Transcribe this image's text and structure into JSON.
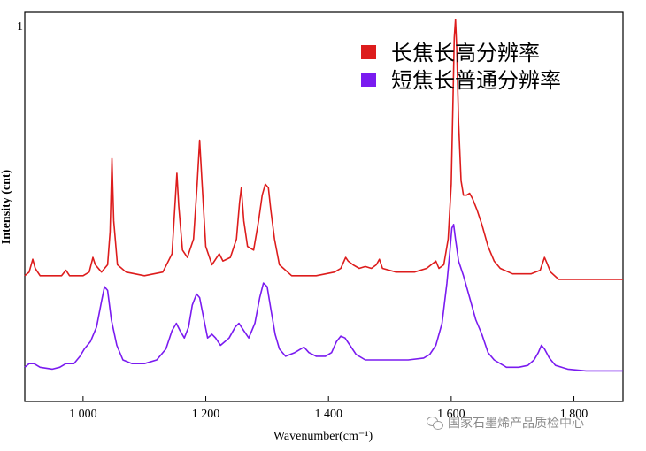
{
  "chart_data": {
    "type": "line",
    "xlabel": "Wavenumber(cm⁻¹)",
    "ylabel": "Intensity (cnt)",
    "panel_letter": "1",
    "xlim": [
      905,
      1880
    ],
    "ylim": [
      0,
      1
    ],
    "x_ticks": [
      1000,
      1200,
      1400,
      1600,
      1800
    ],
    "x_tick_labels": [
      "1 000",
      "1 200",
      "1 400",
      "1 600",
      "1 800"
    ],
    "legend_position": "top-right",
    "series": [
      {
        "name": "长焦长高分辨率",
        "color": "#dd1c1c",
        "points": [
          [
            905,
            0.3
          ],
          [
            912,
            0.31
          ],
          [
            918,
            0.345
          ],
          [
            922,
            0.32
          ],
          [
            930,
            0.3
          ],
          [
            950,
            0.3
          ],
          [
            965,
            0.3
          ],
          [
            972,
            0.315
          ],
          [
            978,
            0.3
          ],
          [
            1000,
            0.3
          ],
          [
            1010,
            0.31
          ],
          [
            1016,
            0.35
          ],
          [
            1020,
            0.33
          ],
          [
            1030,
            0.31
          ],
          [
            1040,
            0.33
          ],
          [
            1044,
            0.42
          ],
          [
            1047,
            0.62
          ],
          [
            1050,
            0.45
          ],
          [
            1056,
            0.33
          ],
          [
            1070,
            0.31
          ],
          [
            1100,
            0.3
          ],
          [
            1130,
            0.31
          ],
          [
            1145,
            0.36
          ],
          [
            1150,
            0.5
          ],
          [
            1153,
            0.58
          ],
          [
            1156,
            0.49
          ],
          [
            1162,
            0.37
          ],
          [
            1170,
            0.35
          ],
          [
            1180,
            0.4
          ],
          [
            1186,
            0.55
          ],
          [
            1190,
            0.67
          ],
          [
            1194,
            0.55
          ],
          [
            1200,
            0.38
          ],
          [
            1210,
            0.33
          ],
          [
            1218,
            0.35
          ],
          [
            1222,
            0.36
          ],
          [
            1228,
            0.34
          ],
          [
            1240,
            0.35
          ],
          [
            1250,
            0.4
          ],
          [
            1255,
            0.5
          ],
          [
            1258,
            0.54
          ],
          [
            1262,
            0.45
          ],
          [
            1268,
            0.38
          ],
          [
            1278,
            0.37
          ],
          [
            1286,
            0.45
          ],
          [
            1292,
            0.52
          ],
          [
            1297,
            0.55
          ],
          [
            1302,
            0.54
          ],
          [
            1306,
            0.48
          ],
          [
            1312,
            0.4
          ],
          [
            1320,
            0.33
          ],
          [
            1340,
            0.3
          ],
          [
            1380,
            0.3
          ],
          [
            1410,
            0.31
          ],
          [
            1420,
            0.32
          ],
          [
            1428,
            0.35
          ],
          [
            1432,
            0.34
          ],
          [
            1440,
            0.33
          ],
          [
            1450,
            0.32
          ],
          [
            1460,
            0.325
          ],
          [
            1470,
            0.32
          ],
          [
            1478,
            0.33
          ],
          [
            1483,
            0.345
          ],
          [
            1488,
            0.32
          ],
          [
            1510,
            0.31
          ],
          [
            1540,
            0.31
          ],
          [
            1560,
            0.32
          ],
          [
            1575,
            0.34
          ],
          [
            1580,
            0.32
          ],
          [
            1588,
            0.33
          ],
          [
            1595,
            0.4
          ],
          [
            1600,
            0.55
          ],
          [
            1603,
            0.78
          ],
          [
            1605,
            0.95
          ],
          [
            1607,
            1.0
          ],
          [
            1609,
            0.92
          ],
          [
            1612,
            0.72
          ],
          [
            1616,
            0.56
          ],
          [
            1620,
            0.52
          ],
          [
            1625,
            0.52
          ],
          [
            1630,
            0.525
          ],
          [
            1635,
            0.51
          ],
          [
            1642,
            0.48
          ],
          [
            1650,
            0.44
          ],
          [
            1660,
            0.38
          ],
          [
            1670,
            0.34
          ],
          [
            1680,
            0.32
          ],
          [
            1700,
            0.305
          ],
          [
            1730,
            0.305
          ],
          [
            1745,
            0.315
          ],
          [
            1752,
            0.35
          ],
          [
            1756,
            0.335
          ],
          [
            1762,
            0.31
          ],
          [
            1775,
            0.29
          ],
          [
            1800,
            0.29
          ],
          [
            1880,
            0.29
          ]
        ]
      },
      {
        "name": "短焦长普通分辨率",
        "color": "#7a1bf0",
        "points": [
          [
            905,
            0.05
          ],
          [
            912,
            0.06
          ],
          [
            920,
            0.06
          ],
          [
            930,
            0.05
          ],
          [
            950,
            0.045
          ],
          [
            962,
            0.05
          ],
          [
            972,
            0.06
          ],
          [
            985,
            0.06
          ],
          [
            995,
            0.08
          ],
          [
            1002,
            0.1
          ],
          [
            1012,
            0.12
          ],
          [
            1022,
            0.16
          ],
          [
            1030,
            0.23
          ],
          [
            1035,
            0.27
          ],
          [
            1040,
            0.26
          ],
          [
            1046,
            0.18
          ],
          [
            1055,
            0.11
          ],
          [
            1065,
            0.07
          ],
          [
            1080,
            0.06
          ],
          [
            1100,
            0.06
          ],
          [
            1120,
            0.07
          ],
          [
            1135,
            0.1
          ],
          [
            1145,
            0.15
          ],
          [
            1152,
            0.17
          ],
          [
            1158,
            0.15
          ],
          [
            1165,
            0.13
          ],
          [
            1172,
            0.16
          ],
          [
            1178,
            0.22
          ],
          [
            1185,
            0.25
          ],
          [
            1190,
            0.24
          ],
          [
            1197,
            0.18
          ],
          [
            1203,
            0.13
          ],
          [
            1210,
            0.14
          ],
          [
            1216,
            0.13
          ],
          [
            1224,
            0.11
          ],
          [
            1238,
            0.13
          ],
          [
            1248,
            0.16
          ],
          [
            1254,
            0.17
          ],
          [
            1262,
            0.15
          ],
          [
            1270,
            0.13
          ],
          [
            1280,
            0.17
          ],
          [
            1288,
            0.24
          ],
          [
            1294,
            0.28
          ],
          [
            1300,
            0.27
          ],
          [
            1306,
            0.21
          ],
          [
            1313,
            0.14
          ],
          [
            1320,
            0.1
          ],
          [
            1330,
            0.08
          ],
          [
            1345,
            0.09
          ],
          [
            1355,
            0.1
          ],
          [
            1360,
            0.105
          ],
          [
            1368,
            0.09
          ],
          [
            1380,
            0.08
          ],
          [
            1395,
            0.08
          ],
          [
            1405,
            0.09
          ],
          [
            1413,
            0.12
          ],
          [
            1420,
            0.135
          ],
          [
            1427,
            0.13
          ],
          [
            1435,
            0.11
          ],
          [
            1445,
            0.085
          ],
          [
            1460,
            0.07
          ],
          [
            1480,
            0.07
          ],
          [
            1500,
            0.07
          ],
          [
            1530,
            0.07
          ],
          [
            1555,
            0.075
          ],
          [
            1565,
            0.085
          ],
          [
            1575,
            0.11
          ],
          [
            1585,
            0.17
          ],
          [
            1593,
            0.28
          ],
          [
            1598,
            0.37
          ],
          [
            1601,
            0.43
          ],
          [
            1604,
            0.44
          ],
          [
            1607,
            0.4
          ],
          [
            1612,
            0.34
          ],
          [
            1620,
            0.3
          ],
          [
            1630,
            0.24
          ],
          [
            1640,
            0.18
          ],
          [
            1650,
            0.14
          ],
          [
            1660,
            0.09
          ],
          [
            1670,
            0.07
          ],
          [
            1690,
            0.05
          ],
          [
            1710,
            0.05
          ],
          [
            1725,
            0.055
          ],
          [
            1735,
            0.07
          ],
          [
            1742,
            0.09
          ],
          [
            1747,
            0.11
          ],
          [
            1752,
            0.1
          ],
          [
            1760,
            0.075
          ],
          [
            1770,
            0.055
          ],
          [
            1790,
            0.045
          ],
          [
            1820,
            0.04
          ],
          [
            1880,
            0.04
          ]
        ]
      }
    ]
  },
  "watermark": {
    "text": "国家石墨烯产品质检中心",
    "icon": "wechat-icon"
  }
}
